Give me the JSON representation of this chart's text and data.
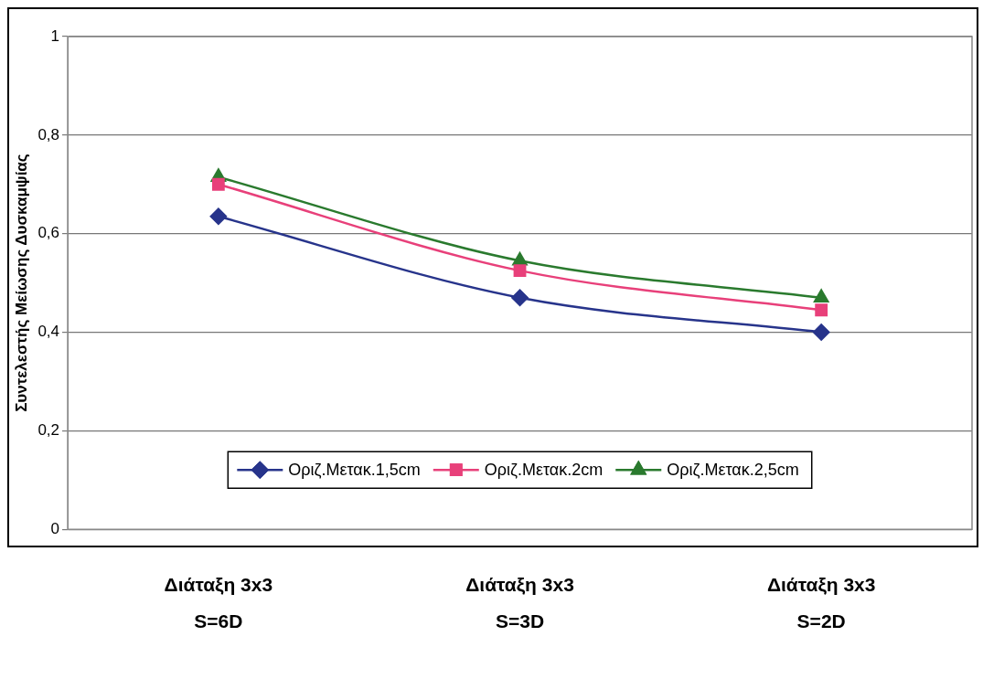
{
  "chart_data": {
    "type": "line",
    "ylabel": "Συντελεστής Μείωσης Δυσκαμψίας",
    "categories": [
      "Διάταξη 3x3\nS=6D",
      "Διάταξη 3x3\nS=3D",
      "Διάταξη 3x3\nS=2D"
    ],
    "series": [
      {
        "name": "Οριζ.Μετακ.1,5cm",
        "color": "#27348b",
        "values": [
          0.635,
          0.47,
          0.4
        ],
        "marker": "diamond"
      },
      {
        "name": "Οριζ.Μετακ.2cm",
        "color": "#e8407a",
        "values": [
          0.7,
          0.525,
          0.445
        ],
        "marker": "square"
      },
      {
        "name": "Οριζ.Μετακ.2,5cm",
        "color": "#2a7a2e",
        "values": [
          0.715,
          0.545,
          0.47
        ],
        "marker": "triangle"
      }
    ],
    "ylim": [
      0,
      1
    ],
    "yticks": [
      0,
      {
        "value": 0.2,
        "label": "0,2"
      },
      {
        "value": 0.4,
        "label": "0,4"
      },
      {
        "value": 0.6,
        "label": "0,6"
      },
      {
        "value": 0.8,
        "label": "0,8"
      },
      1
    ],
    "grid": "y",
    "legend": "bottom"
  }
}
